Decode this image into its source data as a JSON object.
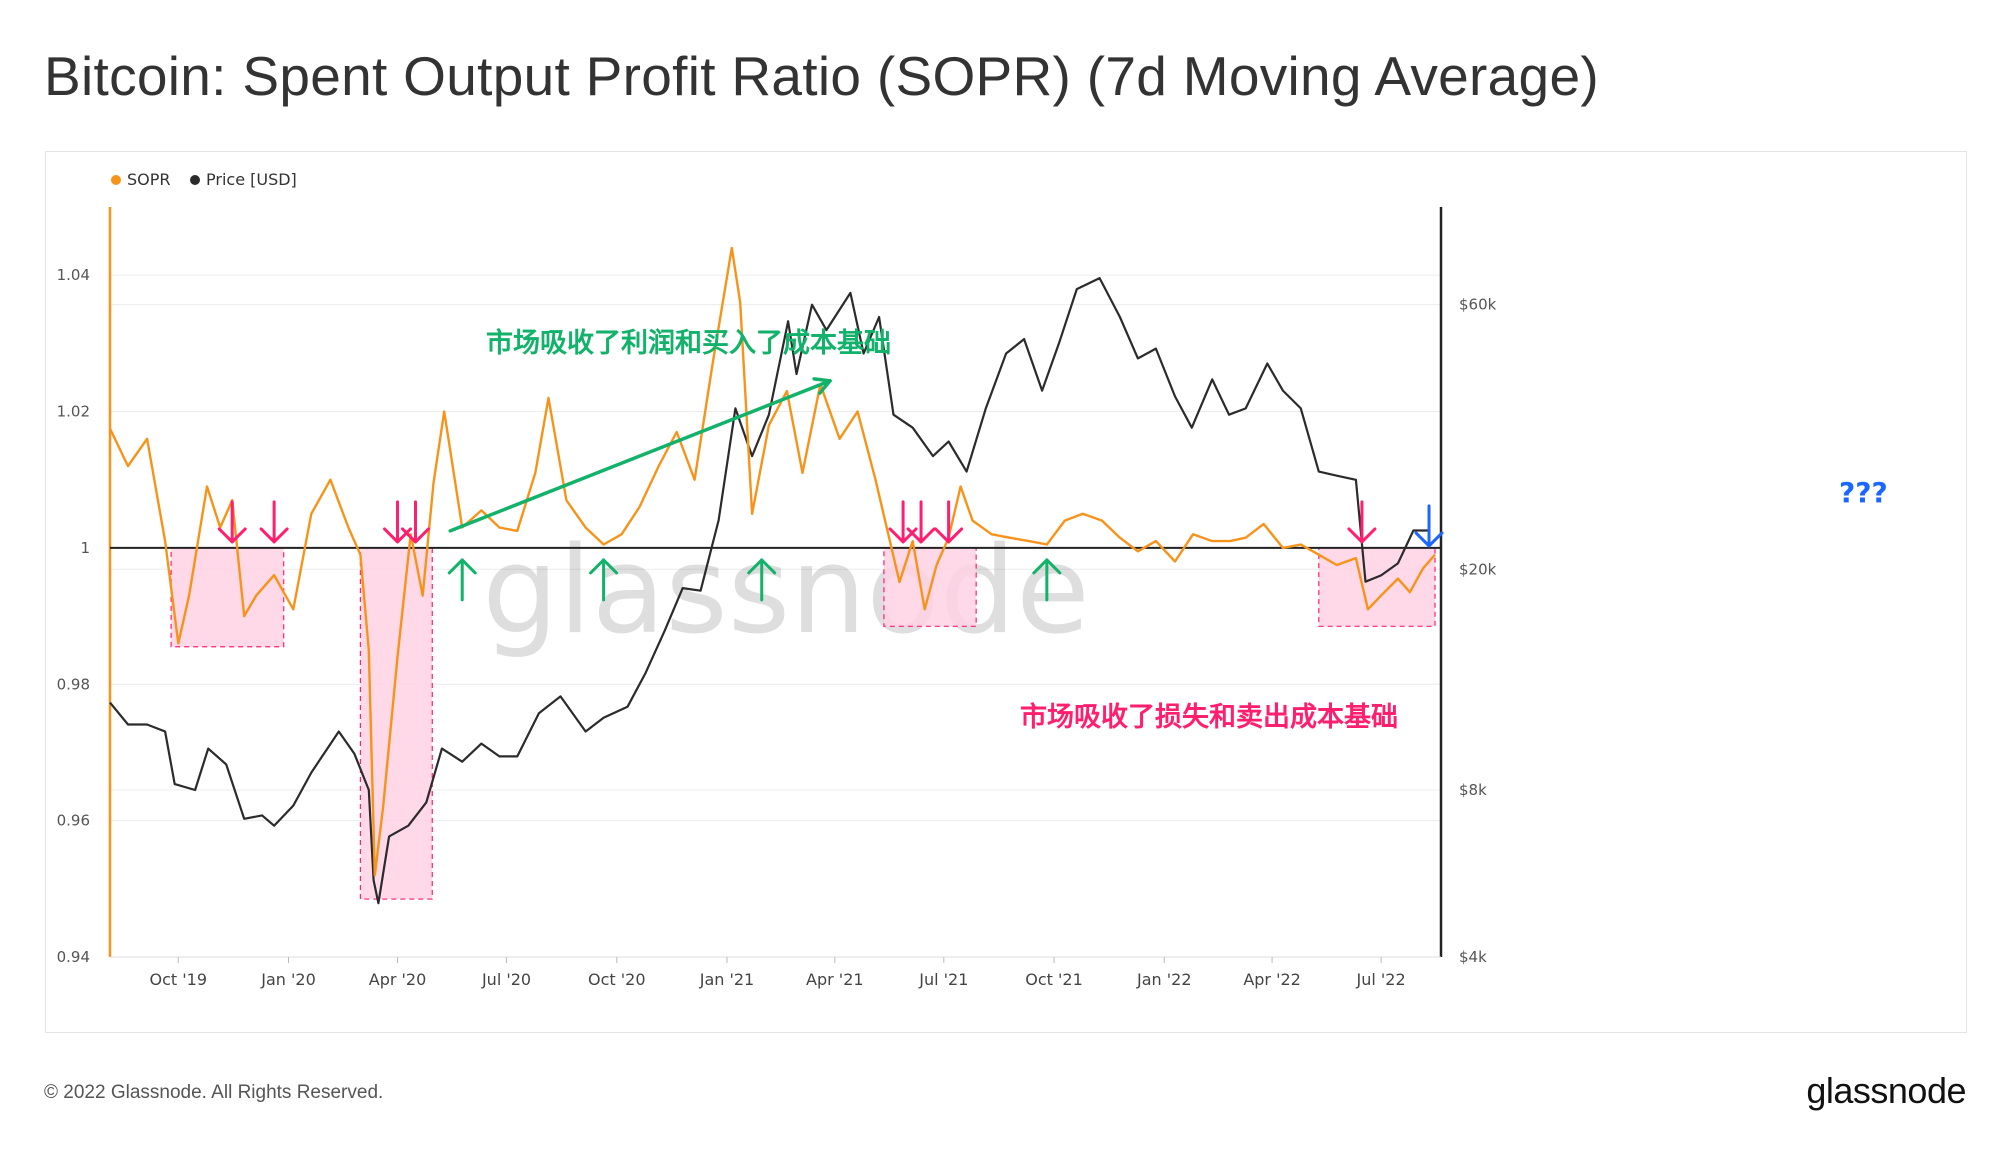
{
  "title": "Bitcoin: Spent Output Profit Ratio (SOPR) (7d Moving Average)",
  "footer": {
    "copyright": "© 2022 Glassnode. All Rights Reserved.",
    "logo": "glassnode"
  },
  "watermark": "glassnode",
  "colors": {
    "sopr": "#f7931a",
    "price": "#2b2b2b",
    "green": "#12b26b",
    "pink": "#ff1f6e",
    "blue": "#1a66ff",
    "zone_fill": "#ffd2e3"
  },
  "chart_data": {
    "type": "line",
    "title": "Bitcoin: Spent Output Profit Ratio (SOPR) (7d Moving Average)",
    "legend": [
      {
        "name": "SOPR",
        "color": "#f7931a"
      },
      {
        "name": "Price [USD]",
        "color": "#2b2b2b"
      }
    ],
    "legend_position": "top-left",
    "x_ticks": [
      "Oct '19",
      "Jan '20",
      "Apr '20",
      "Jul '20",
      "Oct '20",
      "Jan '21",
      "Apr '21",
      "Jul '21",
      "Oct '21",
      "Jan '22",
      "Apr '22",
      "Jul '22"
    ],
    "x_range": [
      "2019-08-05",
      "2022-08-20"
    ],
    "y_left": {
      "ticks": [
        "0.94",
        "0.96",
        "0.98",
        "1",
        "1.02",
        "1.04"
      ],
      "range": [
        0.94,
        1.05
      ]
    },
    "y_right": {
      "ticks": [
        "$4k",
        "$8k",
        "$20k",
        "$60k"
      ],
      "range": [
        4000,
        90000
      ],
      "scale": "log"
    },
    "reference_line": 1,
    "grid": "horizontal",
    "series": [
      {
        "name": "SOPR",
        "axis": "left",
        "points": [
          [
            "2019-08-05",
            1.0175
          ],
          [
            "2019-08-20",
            1.012
          ],
          [
            "2019-09-05",
            1.016
          ],
          [
            "2019-09-20",
            1.001
          ],
          [
            "2019-10-01",
            0.986
          ],
          [
            "2019-10-10",
            0.993
          ],
          [
            "2019-10-25",
            1.009
          ],
          [
            "2019-11-05",
            1.003
          ],
          [
            "2019-11-15",
            1.007
          ],
          [
            "2019-11-25",
            0.99
          ],
          [
            "2019-12-05",
            0.993
          ],
          [
            "2019-12-20",
            0.996
          ],
          [
            "2020-01-05",
            0.991
          ],
          [
            "2020-01-20",
            1.005
          ],
          [
            "2020-02-05",
            1.01
          ],
          [
            "2020-02-20",
            1.003
          ],
          [
            "2020-03-01",
            0.999
          ],
          [
            "2020-03-08",
            0.985
          ],
          [
            "2020-03-13",
            0.952
          ],
          [
            "2020-03-20",
            0.962
          ],
          [
            "2020-04-01",
            0.984
          ],
          [
            "2020-04-12",
            1.002
          ],
          [
            "2020-04-22",
            0.993
          ],
          [
            "2020-05-01",
            1.0095
          ],
          [
            "2020-05-10",
            1.02
          ],
          [
            "2020-05-25",
            1.003
          ],
          [
            "2020-06-10",
            1.0055
          ],
          [
            "2020-06-25",
            1.003
          ],
          [
            "2020-07-10",
            1.0025
          ],
          [
            "2020-07-25",
            1.011
          ],
          [
            "2020-08-05",
            1.022
          ],
          [
            "2020-08-20",
            1.007
          ],
          [
            "2020-09-05",
            1.003
          ],
          [
            "2020-09-20",
            1.0005
          ],
          [
            "2020-10-05",
            1.002
          ],
          [
            "2020-10-20",
            1.006
          ],
          [
            "2020-11-05",
            1.012
          ],
          [
            "2020-11-20",
            1.017
          ],
          [
            "2020-12-05",
            1.01
          ],
          [
            "2020-12-20",
            1.027
          ],
          [
            "2021-01-05",
            1.044
          ],
          [
            "2021-01-12",
            1.036
          ],
          [
            "2021-01-22",
            1.005
          ],
          [
            "2021-02-05",
            1.018
          ],
          [
            "2021-02-20",
            1.023
          ],
          [
            "2021-03-05",
            1.011
          ],
          [
            "2021-03-20",
            1.024
          ],
          [
            "2021-04-05",
            1.016
          ],
          [
            "2021-04-20",
            1.02
          ],
          [
            "2021-05-05",
            1.01
          ],
          [
            "2021-05-15",
            1.0025
          ],
          [
            "2021-05-25",
            0.995
          ],
          [
            "2021-06-05",
            1.001
          ],
          [
            "2021-06-15",
            0.991
          ],
          [
            "2021-06-25",
            0.9975
          ],
          [
            "2021-07-05",
            1.0015
          ],
          [
            "2021-07-15",
            1.009
          ],
          [
            "2021-07-25",
            1.004
          ],
          [
            "2021-08-10",
            1.002
          ],
          [
            "2021-08-25",
            1.0015
          ],
          [
            "2021-09-10",
            1.001
          ],
          [
            "2021-09-25",
            1.0005
          ],
          [
            "2021-10-10",
            1.004
          ],
          [
            "2021-10-25",
            1.005
          ],
          [
            "2021-11-10",
            1.004
          ],
          [
            "2021-11-25",
            1.0015
          ],
          [
            "2021-12-10",
            0.9995
          ],
          [
            "2021-12-25",
            1.001
          ],
          [
            "2022-01-10",
            0.998
          ],
          [
            "2022-01-25",
            1.002
          ],
          [
            "2022-02-10",
            1.001
          ],
          [
            "2022-02-25",
            1.001
          ],
          [
            "2022-03-10",
            1.0015
          ],
          [
            "2022-03-25",
            1.0035
          ],
          [
            "2022-04-10",
            1.0
          ],
          [
            "2022-04-25",
            1.0005
          ],
          [
            "2022-05-10",
            0.999
          ],
          [
            "2022-05-25",
            0.9975
          ],
          [
            "2022-06-10",
            0.9985
          ],
          [
            "2022-06-20",
            0.991
          ],
          [
            "2022-07-01",
            0.993
          ],
          [
            "2022-07-15",
            0.9955
          ],
          [
            "2022-07-25",
            0.9935
          ],
          [
            "2022-08-05",
            0.997
          ],
          [
            "2022-08-15",
            0.999
          ]
        ]
      },
      {
        "name": "Price [USD]",
        "axis": "right",
        "points": [
          [
            "2019-08-05",
            11500
          ],
          [
            "2019-08-20",
            10500
          ],
          [
            "2019-09-05",
            10500
          ],
          [
            "2019-09-20",
            10200
          ],
          [
            "2019-09-28",
            8200
          ],
          [
            "2019-10-15",
            8000
          ],
          [
            "2019-10-26",
            9500
          ],
          [
            "2019-11-10",
            8900
          ],
          [
            "2019-11-25",
            7100
          ],
          [
            "2019-12-10",
            7200
          ],
          [
            "2019-12-20",
            6900
          ],
          [
            "2020-01-05",
            7500
          ],
          [
            "2020-01-20",
            8600
          ],
          [
            "2020-02-12",
            10200
          ],
          [
            "2020-02-25",
            9300
          ],
          [
            "2020-03-08",
            8000
          ],
          [
            "2020-03-12",
            5500
          ],
          [
            "2020-03-16",
            5000
          ],
          [
            "2020-03-25",
            6600
          ],
          [
            "2020-04-10",
            6900
          ],
          [
            "2020-04-25",
            7600
          ],
          [
            "2020-05-08",
            9500
          ],
          [
            "2020-05-25",
            9000
          ],
          [
            "2020-06-10",
            9700
          ],
          [
            "2020-06-25",
            9200
          ],
          [
            "2020-07-10",
            9200
          ],
          [
            "2020-07-28",
            11000
          ],
          [
            "2020-08-15",
            11800
          ],
          [
            "2020-09-05",
            10200
          ],
          [
            "2020-09-20",
            10800
          ],
          [
            "2020-10-10",
            11300
          ],
          [
            "2020-10-25",
            13000
          ],
          [
            "2020-11-10",
            15500
          ],
          [
            "2020-11-25",
            18500
          ],
          [
            "2020-12-10",
            18300
          ],
          [
            "2020-12-25",
            24500
          ],
          [
            "2021-01-08",
            39000
          ],
          [
            "2021-01-22",
            32000
          ],
          [
            "2021-02-05",
            38000
          ],
          [
            "2021-02-21",
            56000
          ],
          [
            "2021-02-28",
            45000
          ],
          [
            "2021-03-13",
            60000
          ],
          [
            "2021-03-25",
            54000
          ],
          [
            "2021-04-14",
            63000
          ],
          [
            "2021-04-25",
            49000
          ],
          [
            "2021-05-08",
            57000
          ],
          [
            "2021-05-20",
            38000
          ],
          [
            "2021-06-05",
            36000
          ],
          [
            "2021-06-22",
            32000
          ],
          [
            "2021-07-05",
            34000
          ],
          [
            "2021-07-20",
            30000
          ],
          [
            "2021-08-05",
            39000
          ],
          [
            "2021-08-22",
            49000
          ],
          [
            "2021-09-06",
            52000
          ],
          [
            "2021-09-21",
            42000
          ],
          [
            "2021-10-05",
            51000
          ],
          [
            "2021-10-20",
            64000
          ],
          [
            "2021-11-08",
            67000
          ],
          [
            "2021-11-25",
            57000
          ],
          [
            "2021-12-10",
            48000
          ],
          [
            "2021-12-25",
            50000
          ],
          [
            "2022-01-10",
            41000
          ],
          [
            "2022-01-24",
            36000
          ],
          [
            "2022-02-10",
            44000
          ],
          [
            "2022-02-24",
            38000
          ],
          [
            "2022-03-10",
            39000
          ],
          [
            "2022-03-28",
            47000
          ],
          [
            "2022-04-10",
            42000
          ],
          [
            "2022-04-25",
            39000
          ],
          [
            "2022-05-10",
            30000
          ],
          [
            "2022-05-25",
            29500
          ],
          [
            "2022-06-10",
            29000
          ],
          [
            "2022-06-18",
            19000
          ],
          [
            "2022-07-01",
            19500
          ],
          [
            "2022-07-15",
            20500
          ],
          [
            "2022-07-28",
            23500
          ],
          [
            "2022-08-10",
            23500
          ]
        ]
      }
    ],
    "annotations": {
      "text_green": "市场吸收了利润和买入了成本基础",
      "text_pink": "市场吸收了损失和卖出成本基础",
      "text_question": "???",
      "trend_arrow": {
        "from": [
          "2020-05-15",
          1.0025
        ],
        "to": [
          "2021-03-28",
          1.0245
        ]
      },
      "loss_zones": [
        {
          "from": "2019-09-25",
          "to": "2019-12-28",
          "y_low": 0.9855,
          "y_high": 1.0
        },
        {
          "from": "2020-03-01",
          "to": "2020-04-30",
          "y_low": 0.9485,
          "y_high": 1.0
        },
        {
          "from": "2021-05-12",
          "to": "2021-07-28",
          "y_low": 0.9885,
          "y_high": 1.0
        },
        {
          "from": "2022-05-10",
          "to": "2022-08-15",
          "y_low": 0.9885,
          "y_high": 1.0
        }
      ],
      "pink_down_arrows": [
        "2019-11-15",
        "2019-12-20",
        "2020-04-01",
        "2020-04-16",
        "2021-05-28",
        "2021-06-12",
        "2021-07-05",
        "2022-06-15"
      ],
      "green_up_arrows": [
        "2020-05-25",
        "2020-09-20",
        "2021-01-30",
        "2021-09-25"
      ],
      "blue_down_arrows": [
        "2022-08-10"
      ]
    }
  }
}
